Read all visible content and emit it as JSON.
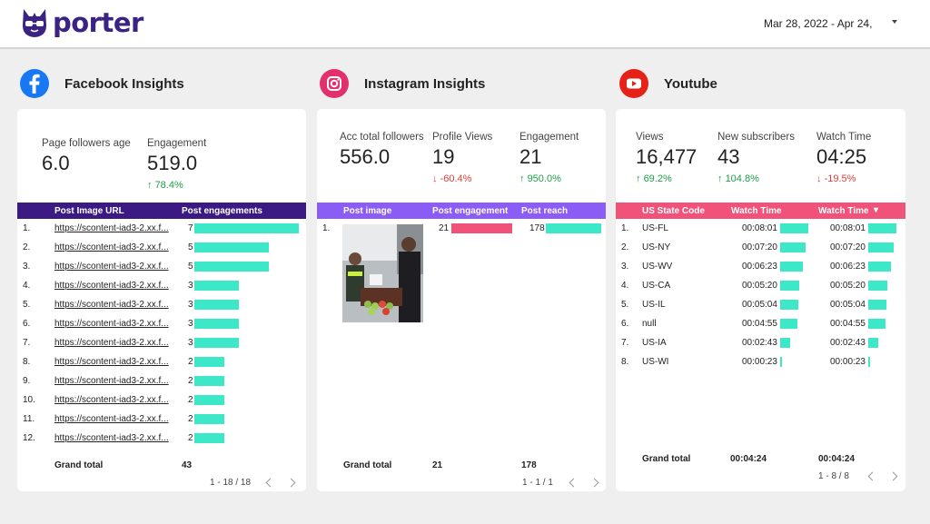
{
  "header": {
    "logo_text": "porter",
    "date_range": "Mar 28, 2022 - Apr 24,"
  },
  "facebook": {
    "title": "Facebook Insights",
    "icon": "facebook-icon",
    "color": "#3c1a83",
    "metrics": [
      {
        "label": "Page followers age",
        "value": "6.0"
      },
      {
        "label": "Engagement",
        "value": "519.0",
        "change": "78.4%",
        "direction": "up"
      }
    ],
    "table": {
      "columns": [
        "Post Image URL",
        "Post engagements"
      ],
      "max_value": 7,
      "rows": [
        {
          "num": "1.",
          "url": "https://scontent-iad3-2.xx.f...",
          "value": 7
        },
        {
          "num": "2.",
          "url": "https://scontent-iad3-2.xx.f...",
          "value": 5
        },
        {
          "num": "3.",
          "url": "https://scontent-iad3-2.xx.f...",
          "value": 5
        },
        {
          "num": "4.",
          "url": "https://scontent-iad3-2.xx.f...",
          "value": 3
        },
        {
          "num": "5.",
          "url": "https://scontent-iad3-2.xx.f...",
          "value": 3
        },
        {
          "num": "6.",
          "url": "https://scontent-iad3-2.xx.f...",
          "value": 3
        },
        {
          "num": "7.",
          "url": "https://scontent-iad3-2.xx.f...",
          "value": 3
        },
        {
          "num": "8.",
          "url": "https://scontent-iad3-2.xx.f...",
          "value": 2
        },
        {
          "num": "9.",
          "url": "https://scontent-iad3-2.xx.f...",
          "value": 2
        },
        {
          "num": "10.",
          "url": "https://scontent-iad3-2.xx.f...",
          "value": 2
        },
        {
          "num": "11.",
          "url": "https://scontent-iad3-2.xx.f...",
          "value": 2
        },
        {
          "num": "12.",
          "url": "https://scontent-iad3-2.xx.f...",
          "value": 2
        }
      ],
      "grand_total_label": "Grand total",
      "grand_total": "43",
      "pager": "1 - 18 / 18"
    }
  },
  "instagram": {
    "title": "Instagram Insights",
    "icon": "instagram-icon",
    "color": "#8b5cf6",
    "metrics": [
      {
        "label": "Acc total followers",
        "value": "556.0"
      },
      {
        "label": "Profile Views",
        "value": "19",
        "change": "-60.4%",
        "direction": "down"
      },
      {
        "label": "Engagement",
        "value": "21",
        "change": "950.0%",
        "direction": "up"
      }
    ],
    "table": {
      "columns": [
        "Post image",
        "Post engagement",
        "Post reach"
      ],
      "rows": [
        {
          "num": "1.",
          "engagement": 21,
          "reach": 178
        }
      ],
      "grand_total_label": "Grand total",
      "grand_total_engagement": "21",
      "grand_total_reach": "178",
      "pager": "1 - 1 / 1"
    }
  },
  "youtube": {
    "title": "Youtube",
    "icon": "youtube-icon",
    "color": "#f0527a",
    "metrics": [
      {
        "label": "Views",
        "value": "16,477",
        "change": "69.2%",
        "direction": "up"
      },
      {
        "label": "New subscribers",
        "value": "43",
        "change": "104.8%",
        "direction": "up"
      },
      {
        "label": "Watch Time",
        "value": "04:25",
        "change": "-19.5%",
        "direction": "down"
      }
    ],
    "table": {
      "columns": [
        "US State Code",
        "Watch Time",
        "Watch Time"
      ],
      "max_seconds": 481,
      "rows": [
        {
          "num": "1.",
          "state": "US-FL",
          "time": "00:08:01",
          "seconds": 481
        },
        {
          "num": "2.",
          "state": "US-NY",
          "time": "00:07:20",
          "seconds": 440
        },
        {
          "num": "3.",
          "state": "US-WV",
          "time": "00:06:23",
          "seconds": 383
        },
        {
          "num": "4.",
          "state": "US-CA",
          "time": "00:05:20",
          "seconds": 320
        },
        {
          "num": "5.",
          "state": "US-IL",
          "time": "00:05:04",
          "seconds": 304
        },
        {
          "num": "6.",
          "state": "null",
          "time": "00:04:55",
          "seconds": 295
        },
        {
          "num": "7.",
          "state": "US-IA",
          "time": "00:02:43",
          "seconds": 163
        },
        {
          "num": "8.",
          "state": "US-WI",
          "time": "00:00:23",
          "seconds": 23
        }
      ],
      "grand_total_label": "Grand total",
      "grand_total_1": "00:04:24",
      "grand_total_2": "00:04:24",
      "pager": "1 - 8 / 8"
    }
  },
  "bar_color": "#3de8c9"
}
